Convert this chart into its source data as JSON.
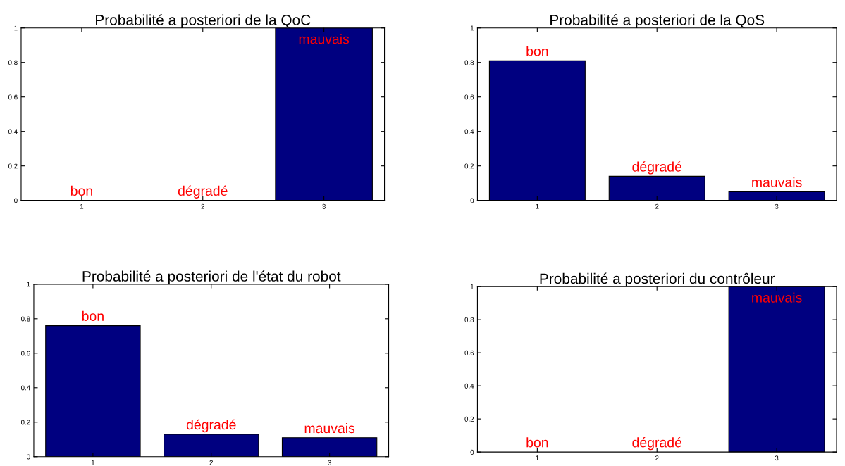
{
  "chart_data": [
    {
      "type": "bar",
      "title": "Probabilité a posteriori de la QoC",
      "categories": [
        "1",
        "2",
        "3"
      ],
      "values": [
        0,
        0,
        1
      ],
      "color": "#000080",
      "ylim": [
        0,
        1
      ],
      "yticks": [
        0,
        0.2,
        0.4,
        0.6,
        0.8,
        1
      ],
      "grid": false,
      "annotations": [
        {
          "text": "bon",
          "x": "1",
          "y": 0
        },
        {
          "text": "dégradé",
          "x": "2",
          "y": 0
        },
        {
          "text": "mauvais",
          "x": "3",
          "y": 1
        }
      ]
    },
    {
      "type": "bar",
      "title": "Probabilité a posteriori de la QoS",
      "categories": [
        "1",
        "2",
        "3"
      ],
      "values": [
        0.81,
        0.14,
        0.05
      ],
      "color": "#000080",
      "ylim": [
        0,
        1
      ],
      "yticks": [
        0,
        0.2,
        0.4,
        0.6,
        0.8,
        1
      ],
      "grid": false,
      "annotations": [
        {
          "text": "bon",
          "x": "1",
          "y": 0.81
        },
        {
          "text": "dégradé",
          "x": "2",
          "y": 0.14
        },
        {
          "text": "mauvais",
          "x": "3",
          "y": 0.05
        }
      ]
    },
    {
      "type": "bar",
      "title": "Probabilité a posteriori de l'état du robot",
      "categories": [
        "1",
        "2",
        "3"
      ],
      "values": [
        0.76,
        0.13,
        0.11
      ],
      "color": "#000080",
      "ylim": [
        0,
        1
      ],
      "yticks": [
        0,
        0.2,
        0.4,
        0.6,
        0.8,
        1
      ],
      "grid": false,
      "annotations": [
        {
          "text": "bon",
          "x": "1",
          "y": 0.76
        },
        {
          "text": "dégradé",
          "x": "2",
          "y": 0.13
        },
        {
          "text": "mauvais",
          "x": "3",
          "y": 0.11
        }
      ]
    },
    {
      "type": "bar",
      "title": "Probabilité a posteriori du contrôleur",
      "categories": [
        "1",
        "2",
        "3"
      ],
      "values": [
        0,
        0,
        1
      ],
      "color": "#000080",
      "ylim": [
        0,
        1
      ],
      "yticks": [
        0,
        0.2,
        0.4,
        0.6,
        0.8,
        1
      ],
      "grid": false,
      "annotations": [
        {
          "text": "bon",
          "x": "1",
          "y": 0
        },
        {
          "text": "dégradé",
          "x": "2",
          "y": 0
        },
        {
          "text": "mauvais",
          "x": "3",
          "y": 1
        }
      ]
    }
  ]
}
